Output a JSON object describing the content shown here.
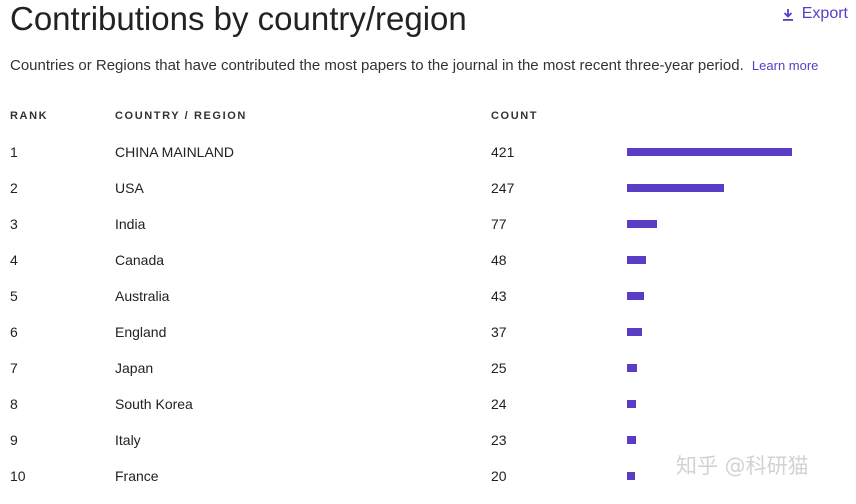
{
  "header": {
    "title": "Contributions by country/region",
    "export_label": "Export",
    "description": "Countries or Regions that have contributed the most papers to the journal in the most recent three-year period.",
    "learn_more": "Learn more"
  },
  "table": {
    "columns": {
      "rank": "RANK",
      "country": "COUNTRY / REGION",
      "count": "COUNT"
    },
    "rows": [
      {
        "rank": "1",
        "country": "CHINA MAINLAND",
        "count": "421"
      },
      {
        "rank": "2",
        "country": "USA",
        "count": "247"
      },
      {
        "rank": "3",
        "country": "India",
        "count": "77"
      },
      {
        "rank": "4",
        "country": "Canada",
        "count": "48"
      },
      {
        "rank": "5",
        "country": "Australia",
        "count": "43"
      },
      {
        "rank": "6",
        "country": "England",
        "count": "37"
      },
      {
        "rank": "7",
        "country": "Japan",
        "count": "25"
      },
      {
        "rank": "8",
        "country": "South Korea",
        "count": "24"
      },
      {
        "rank": "9",
        "country": "Italy",
        "count": "23"
      },
      {
        "rank": "10",
        "country": "France",
        "count": "20"
      }
    ],
    "max_count": 421
  },
  "watermark": "知乎 @科研猫",
  "colors": {
    "accent": "#5b3cc4"
  },
  "icons": {
    "export": "download-icon"
  }
}
